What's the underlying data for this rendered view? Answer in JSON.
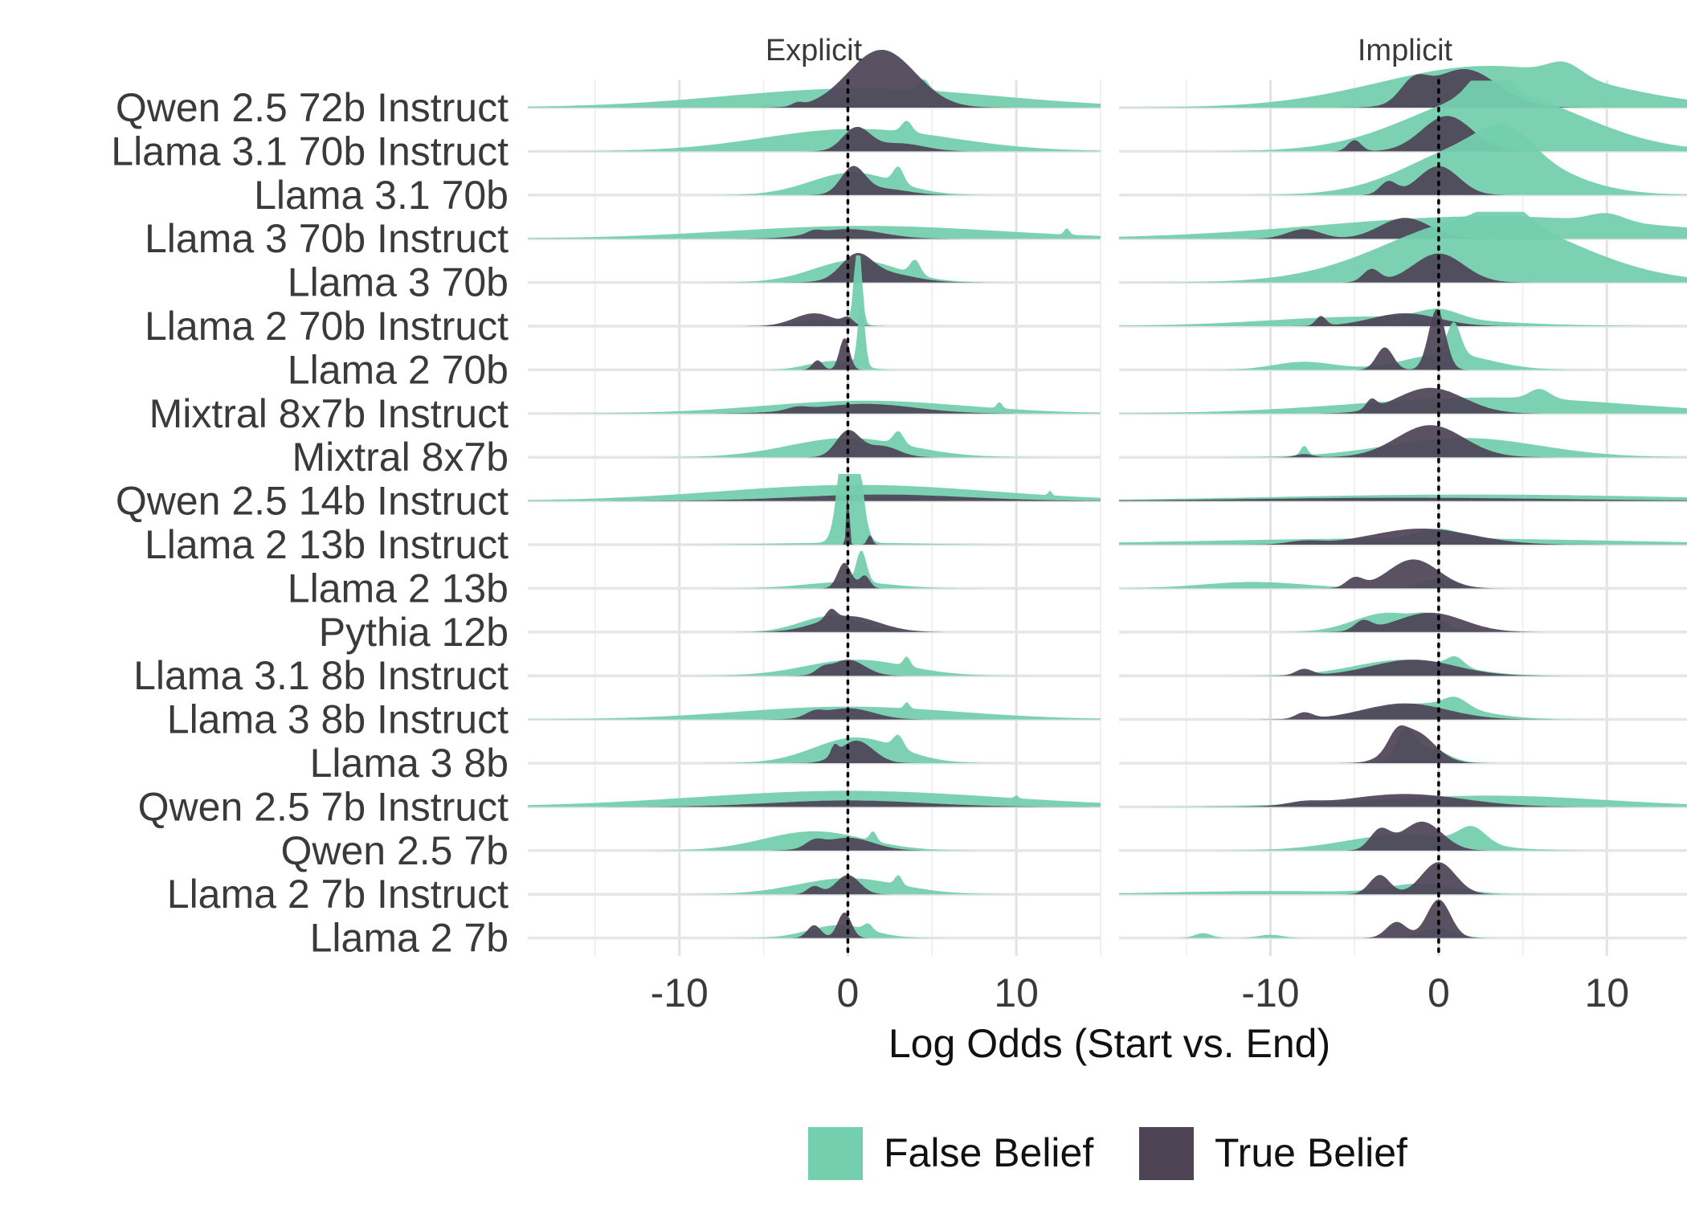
{
  "chart_data": {
    "type": "ridgeline-density",
    "facets": [
      "Explicit",
      "Implicit"
    ],
    "xlabel": "Log Odds (Start vs. End)",
    "ylabel": "",
    "xlim": [
      -19,
      15
    ],
    "xticks": [
      -10,
      0,
      10
    ],
    "reference_line_x": 0,
    "grid": true,
    "legend_position": "bottom",
    "models": [
      "Qwen 2.5 72b Instruct",
      "Llama 3.1 70b Instruct",
      "Llama 3.1 70b",
      "Llama 3 70b Instruct",
      "Llama 3 70b",
      "Llama 2 70b Instruct",
      "Llama 2 70b",
      "Mixtral 8x7b Instruct",
      "Mixtral 8x7b",
      "Qwen 2.5 14b Instruct",
      "Llama 2 13b Instruct",
      "Llama 2 13b",
      "Pythia 12b",
      "Llama 3.1 8b Instruct",
      "Llama 3 8b Instruct",
      "Llama 3 8b",
      "Qwen 2.5 7b Instruct",
      "Qwen 2.5 7b",
      "Llama 2 7b Instruct",
      "Llama 2 7b"
    ],
    "series": [
      {
        "name": "False Belief",
        "color": "#74cfae",
        "explicit": [
          [
            [
              0.8,
              0.6,
              8.0,
              0.35,
              4.5,
              0.3
            ]
          ],
          [
            [
              0.5,
              0.7,
              5.5,
              0.35,
              3.5,
              0.3
            ]
          ],
          [
            [
              0.3,
              0.7,
              2.5,
              0.5,
              3.0,
              0.3
            ]
          ],
          [
            [
              1.0,
              0.4,
              8.0,
              0.2,
              13.0,
              0.15
            ]
          ],
          [
            [
              0.5,
              0.7,
              2.5,
              0.45,
              4.0,
              0.3
            ]
          ],
          [
            [
              -2.0,
              0.2,
              1.2,
              0.0,
              0.0,
              0.0
            ],
            [
              0.0,
              0.15,
              0.7,
              3.0,
              0.6,
              0.2
            ]
          ],
          [
            [
              -1.5,
              0.2,
              1.2,
              0.0,
              0.0,
              0.0
            ],
            [
              0.0,
              0.15,
              1.0,
              2.0,
              0.8,
              0.2
            ]
          ],
          [
            [
              1.0,
              0.4,
              6.0,
              0.2,
              9.0,
              0.15
            ]
          ],
          [
            [
              0.0,
              0.6,
              3.5,
              0.4,
              3.0,
              0.3
            ]
          ],
          [
            [
              0.5,
              0.5,
              8.0,
              0.15,
              12.0,
              0.1
            ]
          ],
          [
            [
              0.0,
              0.06,
              4.0,
              5.8,
              0.12,
              0.5
            ]
          ],
          [
            [
              0.0,
              0.2,
              2.5,
              1.0,
              0.8,
              0.3
            ]
          ],
          [
            [
              -1.0,
              0.5,
              1.8,
              0.0,
              0.0,
              0.0
            ]
          ],
          [
            [
              0.5,
              0.5,
              3.0,
              0.3,
              3.5,
              0.2
            ]
          ],
          [
            [
              0.0,
              0.4,
              6.5,
              0.2,
              3.5,
              0.15
            ]
          ],
          [
            [
              0.5,
              0.8,
              2.5,
              0.4,
              3.0,
              0.3
            ]
          ],
          [
            [
              0.0,
              0.5,
              9.0,
              0.1,
              10.0,
              0.1
            ]
          ],
          [
            [
              -2.0,
              0.6,
              3.0,
              0.3,
              1.5,
              0.2
            ]
          ],
          [
            [
              0.0,
              0.5,
              3.0,
              0.3,
              3.0,
              0.2
            ]
          ],
          [
            [
              -0.5,
              0.4,
              1.8,
              0.2,
              1.2,
              0.25
            ]
          ]
        ],
        "implicit": [
          [
            [
              3.0,
              1.3,
              6.5,
              0.4,
              7.5,
              1.0
            ]
          ],
          [
            [
              3.5,
              1.8,
              5.0,
              0.9,
              3.0,
              1.0
            ]
          ],
          [
            [
              2.5,
              1.6,
              4.0,
              0.7,
              4.0,
              1.5
            ]
          ],
          [
            [
              3.0,
              0.7,
              10.0,
              0.25,
              10.0,
              1.0
            ]
          ],
          [
            [
              2.5,
              2.0,
              5.5,
              0.6,
              4.0,
              1.2
            ]
          ],
          [
            [
              -4.0,
              0.3,
              6.0,
              0.0,
              0.0,
              0.0
            ],
            [
              0.0,
              0.3,
              1.2,
              0.0,
              0.0,
              0.0
            ]
          ],
          [
            [
              -8.0,
              0.25,
              1.8,
              0.0,
              0.0,
              0.0
            ],
            [
              0.5,
              0.5,
              2.5,
              1.0,
              0.9,
              0.4
            ]
          ],
          [
            [
              3.0,
              0.5,
              8.0,
              0.3,
              6.0,
              0.6
            ]
          ],
          [
            [
              1.5,
              0.6,
              4.5,
              0.3,
              -8.0,
              0.2
            ]
          ],
          [
            [
              2.0,
              0.2,
              12.0,
              0.0,
              0.0,
              0.0
            ]
          ],
          [
            [
              -1.5,
              0.2,
              12.0,
              0.0,
              0.0,
              0.0
            ],
            [
              0.0,
              0.3,
              1.2,
              0.0,
              0.0,
              0.0
            ]
          ],
          [
            [
              -11.0,
              0.2,
              3.0,
              0.0,
              0.0,
              0.0
            ],
            [
              0.0,
              0.3,
              1.0,
              0.0,
              0.0,
              0.0
            ]
          ],
          [
            [
              -3.0,
              0.6,
              2.0,
              0.3,
              -0.5,
              0.8
            ]
          ],
          [
            [
              -2.0,
              0.5,
              3.0,
              0.3,
              1.0,
              0.5
            ]
          ],
          [
            [
              -1.0,
              0.5,
              3.0,
              0.3,
              1.0,
              0.7
            ]
          ],
          [
            [
              -0.8,
              0.5,
              1.2,
              0.8,
              -2.0,
              0.5
            ]
          ],
          [
            [
              3.0,
              0.35,
              7.0,
              0.0,
              0.0,
              0.0
            ]
          ],
          [
            [
              -2.0,
              0.5,
              3.5,
              0.5,
              2.0,
              0.8
            ]
          ],
          [
            [
              -10.0,
              0.1,
              6.0,
              0.0,
              0.0,
              0.0
            ],
            [
              -1.0,
              0.3,
              2.0,
              0.0,
              0.0,
              0.0
            ]
          ],
          [
            [
              0.0,
              0.3,
              1.0,
              0.0,
              0.0,
              0.0
            ],
            [
              -14.0,
              0.15,
              0.5,
              0.0,
              0.0,
              0.0
            ],
            [
              -10.0,
              0.1,
              0.7,
              0.0,
              0.0,
              0.0
            ]
          ]
        ]
      },
      {
        "name": "True Belief",
        "color": "#4e4456",
        "explicit": [
          [
            [
              2.0,
              1.8,
              2.0,
              0.1,
              -3.0,
              0.3
            ]
          ],
          [
            [
              0.5,
              0.7,
              0.8,
              0.25,
              3.0,
              1.5
            ]
          ],
          [
            [
              0.3,
              0.8,
              0.7,
              0.2,
              2.0,
              1.5
            ]
          ],
          [
            [
              0.0,
              0.3,
              2.0,
              0.1,
              -2.0,
              0.4
            ]
          ],
          [
            [
              0.5,
              0.7,
              0.9,
              0.3,
              2.0,
              1.8
            ]
          ],
          [
            [
              -2.0,
              0.4,
              1.2,
              0.2,
              0.0,
              0.3
            ]
          ],
          [
            [
              -0.2,
              1.0,
              0.3,
              0.3,
              -1.8,
              0.3
            ]
          ],
          [
            [
              1.0,
              0.3,
              3.0,
              0.1,
              -3.0,
              0.6
            ]
          ],
          [
            [
              0.0,
              0.8,
              0.7,
              0.35,
              2.0,
              1.0
            ]
          ],
          [
            [
              2.0,
              0.2,
              5.0,
              0.0,
              0.0,
              0.0
            ]
          ],
          [
            [
              0.0,
              1.8,
              0.08,
              0.3,
              1.3,
              0.15
            ]
          ],
          [
            [
              -0.2,
              0.8,
              0.4,
              0.4,
              1.0,
              0.3
            ]
          ],
          [
            [
              0.0,
              0.5,
              1.8,
              0.3,
              -1.0,
              0.3
            ]
          ],
          [
            [
              0.0,
              0.5,
              1.0,
              0.15,
              -1.5,
              0.4
            ]
          ],
          [
            [
              0.0,
              0.35,
              1.5,
              0.15,
              -2.0,
              0.5
            ]
          ],
          [
            [
              0.5,
              0.7,
              1.0,
              0.3,
              -0.8,
              0.2
            ]
          ],
          [
            [
              0.0,
              0.2,
              4.5,
              0.0,
              0.0,
              0.0
            ]
          ],
          [
            [
              0.0,
              0.4,
              1.5,
              0.2,
              -2.0,
              0.5
            ]
          ],
          [
            [
              0.0,
              0.6,
              0.7,
              0.25,
              -2.0,
              0.4
            ]
          ],
          [
            [
              -0.2,
              0.8,
              0.4,
              0.4,
              -2.0,
              0.4
            ]
          ]
        ],
        "implicit": [
          [
            [
              1.5,
              1.2,
              2.0,
              0.6,
              -1.5,
              0.8
            ]
          ],
          [
            [
              0.5,
              1.1,
              1.5,
              0.35,
              -5.0,
              0.4
            ]
          ],
          [
            [
              0.0,
              0.9,
              1.2,
              0.4,
              -3.0,
              0.5
            ]
          ],
          [
            [
              -2.0,
              0.65,
              1.5,
              0.3,
              -8.0,
              1.0
            ]
          ],
          [
            [
              0.0,
              0.9,
              1.5,
              0.4,
              -4.0,
              0.5
            ]
          ],
          [
            [
              -2.0,
              0.4,
              2.0,
              0.3,
              -7.0,
              0.3
            ]
          ],
          [
            [
              -0.1,
              1.9,
              0.5,
              0.7,
              -3.2,
              0.5
            ]
          ],
          [
            [
              -0.5,
              0.8,
              2.0,
              0.3,
              -4.0,
              0.3
            ]
          ],
          [
            [
              -0.5,
              1.0,
              2.0,
              0.1,
              -8.0,
              0.5
            ]
          ],
          [
            [
              -2.0,
              0.1,
              9.0,
              0.0,
              0.0,
              0.0
            ]
          ],
          [
            [
              -1.0,
              0.5,
              3.0,
              0.1,
              -8.0,
              1.0
            ]
          ],
          [
            [
              -1.5,
              0.9,
              1.5,
              0.3,
              -5.0,
              0.5
            ]
          ],
          [
            [
              -0.5,
              0.6,
              2.0,
              0.3,
              -4.5,
              0.5
            ]
          ],
          [
            [
              -1.5,
              0.5,
              2.5,
              0.2,
              -8.0,
              0.5
            ]
          ],
          [
            [
              -2.0,
              0.5,
              2.5,
              0.2,
              -8.0,
              0.5
            ]
          ],
          [
            [
              -1.5,
              1.0,
              1.2,
              0.4,
              -2.5,
              0.5
            ]
          ],
          [
            [
              -2.0,
              0.4,
              3.5,
              0.1,
              -8.0,
              1.0
            ]
          ],
          [
            [
              -1.0,
              0.9,
              1.2,
              0.6,
              -3.5,
              0.6
            ]
          ],
          [
            [
              0.0,
              1.0,
              1.0,
              0.6,
              -3.5,
              0.6
            ]
          ],
          [
            [
              0.0,
              1.2,
              0.7,
              0.5,
              -2.5,
              0.6
            ]
          ]
        ]
      }
    ]
  }
}
